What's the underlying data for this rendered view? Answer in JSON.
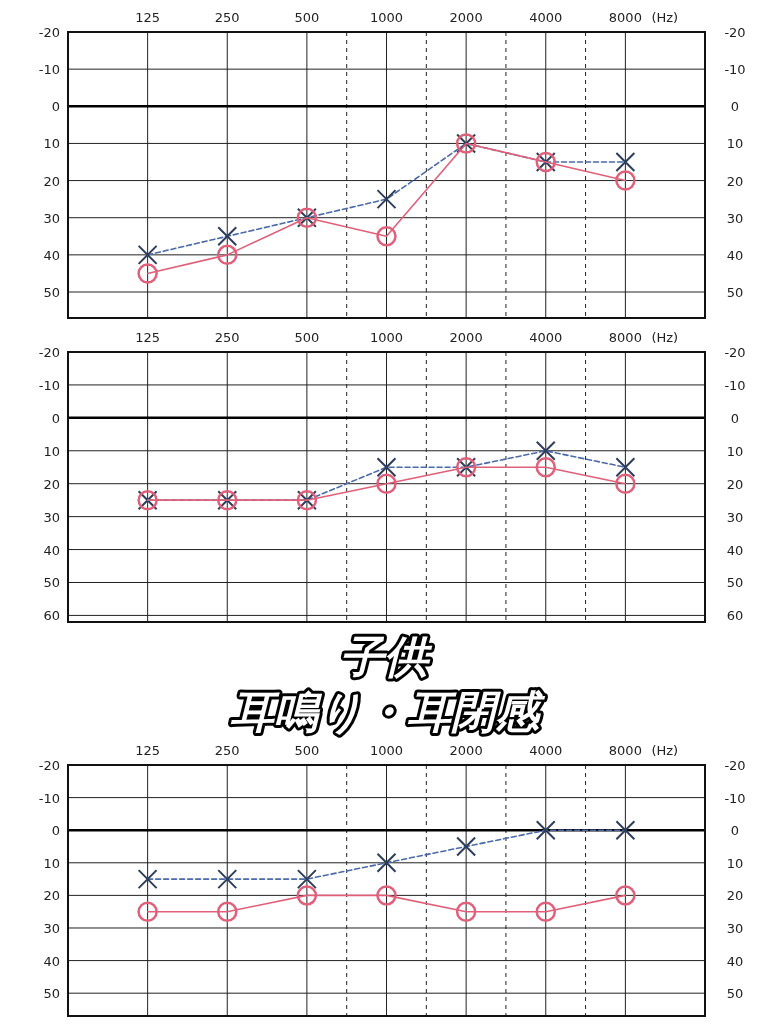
{
  "chart_data": [
    {
      "type": "line",
      "categories": [
        "125",
        "250",
        "500",
        "1000",
        "2000",
        "4000",
        "8000"
      ],
      "xlabel": "(Hz)",
      "ylim": [
        57,
        -20
      ],
      "yticks": [
        -20,
        -10,
        0,
        10,
        20,
        30,
        40,
        50
      ],
      "y2lim": [
        57,
        -20
      ],
      "y2ticks": [
        -20,
        -10,
        0,
        10,
        20,
        30,
        40,
        50
      ],
      "grid": true,
      "ref_lines": [
        {
          "axis": "y",
          "value": 0,
          "color": "#000000"
        }
      ],
      "series": [
        {
          "color": "#4a6aa8",
          "marker": "cross",
          "line_style": "dashed",
          "values": [
            40,
            35,
            30,
            25,
            10,
            15,
            15
          ]
        },
        {
          "color": "#e0607a",
          "marker": "circle",
          "line_style": "solid",
          "values": [
            45,
            40,
            30,
            35,
            10,
            15,
            20
          ]
        }
      ]
    },
    {
      "type": "line",
      "categories": [
        "125",
        "250",
        "500",
        "1000",
        "2000",
        "4000",
        "8000"
      ],
      "xlabel": "(Hz)",
      "ylim": [
        62,
        -20
      ],
      "yticks": [
        -20,
        -10,
        0,
        10,
        20,
        30,
        40,
        50,
        60
      ],
      "y2lim": [
        62,
        -20
      ],
      "y2ticks": [
        -20,
        -10,
        0,
        10,
        20,
        30,
        40,
        50,
        60
      ],
      "grid": true,
      "ref_lines": [
        {
          "axis": "y",
          "value": 0,
          "color": "#000000"
        }
      ],
      "annotations": [
        "子供",
        "耳鳴り・耳閉感"
      ],
      "series": [
        {
          "color": "#4a6aa8",
          "marker": "cross",
          "line_style": "dashed",
          "values": [
            25,
            25,
            25,
            15,
            15,
            10,
            15
          ]
        },
        {
          "color": "#e0607a",
          "marker": "circle",
          "line_style": "solid",
          "values": [
            25,
            25,
            25,
            20,
            15,
            15,
            20
          ]
        }
      ]
    },
    {
      "type": "line",
      "categories": [
        "125",
        "250",
        "500",
        "1000",
        "2000",
        "4000",
        "8000"
      ],
      "xlabel": "(Hz)",
      "ylim": [
        57,
        -20
      ],
      "yticks": [
        -20,
        -10,
        0,
        10,
        20,
        30,
        40,
        50
      ],
      "y2lim": [
        57,
        -20
      ],
      "y2ticks": [
        -20,
        -10,
        0,
        10,
        20,
        30,
        40,
        50
      ],
      "grid": true,
      "ref_lines": [
        {
          "axis": "y",
          "value": 0,
          "color": "#000000"
        }
      ],
      "series": [
        {
          "color": "#4a6aa8",
          "marker": "cross",
          "line_style": "dashed",
          "values": [
            15,
            15,
            15,
            10,
            5,
            0,
            0
          ]
        },
        {
          "color": "#e0607a",
          "marker": "circle",
          "line_style": "solid",
          "values": [
            25,
            25,
            20,
            20,
            25,
            25,
            20
          ]
        }
      ]
    }
  ]
}
